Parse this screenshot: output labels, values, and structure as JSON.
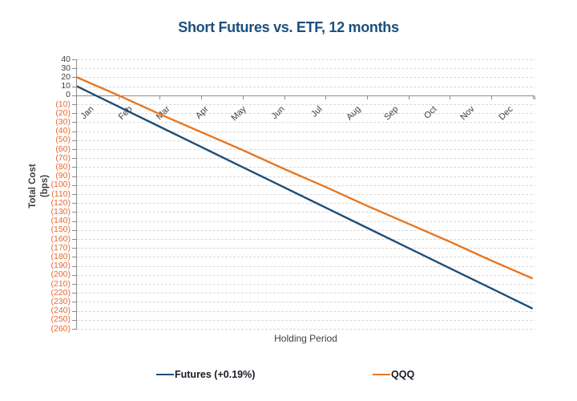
{
  "chart_data": {
    "type": "line",
    "title": "Short Futures vs. ETF, 12 months",
    "xlabel": "Holding Period",
    "ylabel": "Total Cost (bps)",
    "ylabel_lines": [
      "Total Cost",
      "(bps)"
    ],
    "categories": [
      "Jan",
      "Feb",
      "Mar",
      "Apr",
      "May",
      "Jun",
      "Jul",
      "Aug",
      "Sep",
      "Oct",
      "Nov",
      "Dec"
    ],
    "ylim": [
      -260,
      40
    ],
    "ytick_step": 10,
    "ytick_labels": [
      "40",
      "30",
      "20",
      "10",
      "0",
      "(10)",
      "(20)",
      "(30)",
      "(40)",
      "(50)",
      "(60)",
      "(70)",
      "(80)",
      "(90)",
      "(100)",
      "(110)",
      "(120)",
      "(130)",
      "(140)",
      "(150)",
      "(160)",
      "(170)",
      "(180)",
      "(190)",
      "(200)",
      "(210)",
      "(220)",
      "(230)",
      "(240)",
      "(250)",
      "(260)"
    ],
    "grid": "horizontal-dashed",
    "legend_position": "bottom",
    "series": [
      {
        "name": "Futures (+0.19%)",
        "color": "#1f4e79",
        "values": [
          10,
          -12.5,
          -35,
          -57.5,
          -80,
          -102.5,
          -125,
          -147.5,
          -170,
          -192.5,
          -215,
          -237.5
        ]
      },
      {
        "name": "QQQ",
        "color": "#e87722",
        "values": [
          20,
          0,
          -21,
          -41,
          -61,
          -82,
          -102,
          -123,
          -143,
          -163,
          -184,
          -204
        ]
      }
    ],
    "colors": {
      "title": "#1b4f7d",
      "positive_tick_label": "#404040",
      "negative_tick_label": "#e8672c",
      "gridline": "#d9d9d9",
      "axis_line": "#8c8c8c",
      "legend_text": "#1a1a24"
    }
  }
}
